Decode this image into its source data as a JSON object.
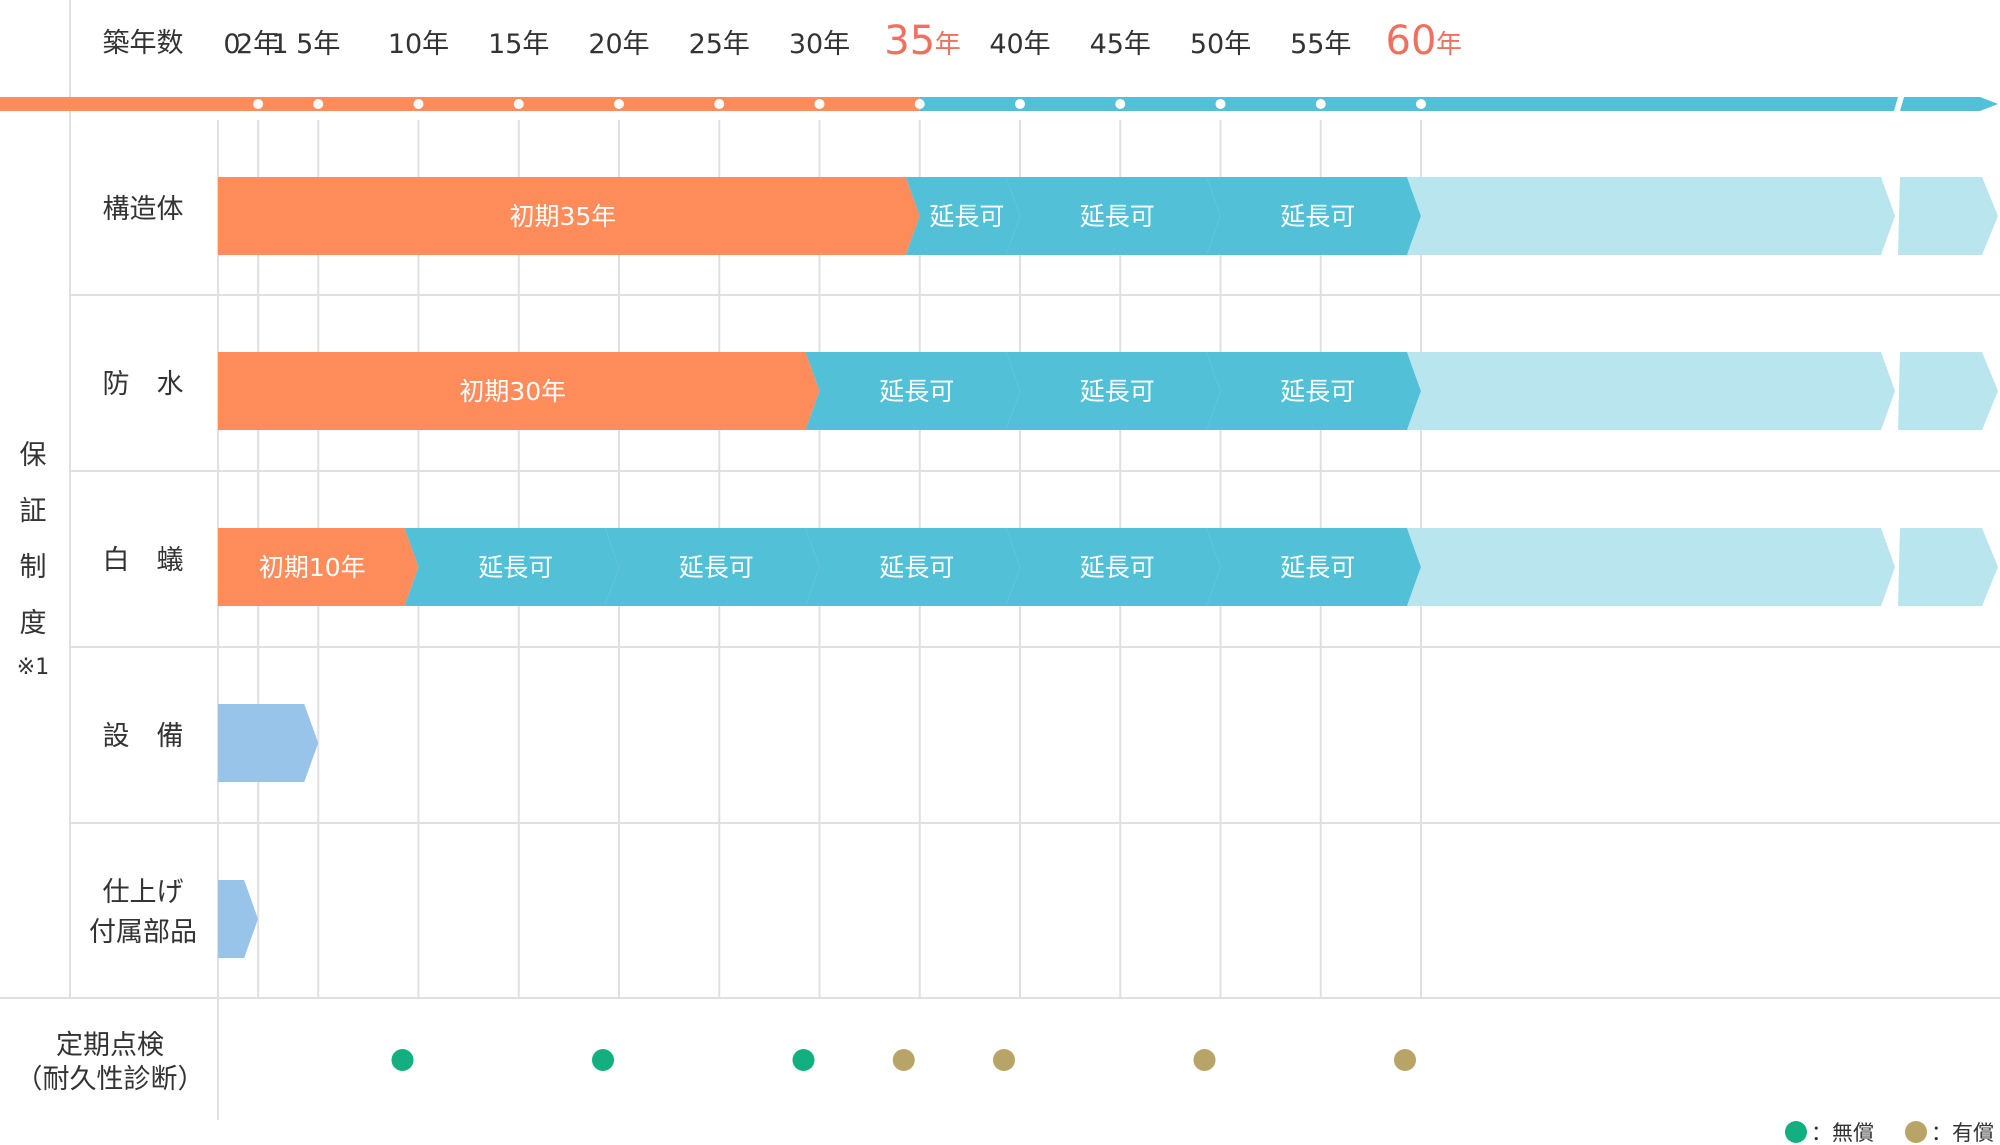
{
  "header": {
    "label": "築年数",
    "year_suffix": "年"
  },
  "years": [
    {
      "text": "0",
      "value": 0
    },
    {
      "text": "1",
      "value": 1
    },
    {
      "text": "2年",
      "value": 2
    },
    {
      "text": "5年",
      "value": 5
    },
    {
      "text": "10年",
      "value": 10
    },
    {
      "text": "15年",
      "value": 15
    },
    {
      "text": "20年",
      "value": 20
    },
    {
      "text": "25年",
      "value": 25
    },
    {
      "text": "30年",
      "value": 30
    },
    {
      "text": "35",
      "value": 35,
      "highlight": true
    },
    {
      "text": "40年",
      "value": 40
    },
    {
      "text": "45年",
      "value": 45
    },
    {
      "text": "50年",
      "value": 50
    },
    {
      "text": "55年",
      "value": 55
    },
    {
      "text": "60",
      "value": 60,
      "highlight": true
    }
  ],
  "side_label": {
    "chars": [
      "保",
      "証",
      "制",
      "度"
    ],
    "note": "※1"
  },
  "rows": [
    {
      "id": "structure",
      "label_lines": [
        "構造体"
      ],
      "segments": [
        {
          "type": "initial",
          "label": "初期35年",
          "start": 0,
          "end": 35
        },
        {
          "type": "extension",
          "label": "延長可",
          "start": 35,
          "end": 40
        },
        {
          "type": "extension",
          "label": "延長可",
          "start": 40,
          "end": 50
        },
        {
          "type": "extension",
          "label": "延長可",
          "start": 50,
          "end": 60
        },
        {
          "type": "future",
          "label": "",
          "start": 60,
          "end": 70
        }
      ]
    },
    {
      "id": "waterproof",
      "label_lines": [
        "防　水"
      ],
      "segments": [
        {
          "type": "initial",
          "label": "初期30年",
          "start": 0,
          "end": 30
        },
        {
          "type": "extension",
          "label": "延長可",
          "start": 30,
          "end": 40
        },
        {
          "type": "extension",
          "label": "延長可",
          "start": 40,
          "end": 50
        },
        {
          "type": "extension",
          "label": "延長可",
          "start": 50,
          "end": 60
        },
        {
          "type": "future",
          "label": "",
          "start": 60,
          "end": 70
        }
      ]
    },
    {
      "id": "termite",
      "label_lines": [
        "白　蟻"
      ],
      "segments": [
        {
          "type": "initial",
          "label": "初期10年",
          "start": 0,
          "end": 10
        },
        {
          "type": "extension",
          "label": "延長可",
          "start": 10,
          "end": 20
        },
        {
          "type": "extension",
          "label": "延長可",
          "start": 20,
          "end": 30
        },
        {
          "type": "extension",
          "label": "延長可",
          "start": 30,
          "end": 40
        },
        {
          "type": "extension",
          "label": "延長可",
          "start": 40,
          "end": 50
        },
        {
          "type": "extension",
          "label": "延長可",
          "start": 50,
          "end": 60
        },
        {
          "type": "future",
          "label": "",
          "start": 60,
          "end": 70
        }
      ]
    },
    {
      "id": "equipment",
      "label_lines": [
        "設　備"
      ],
      "segments": [
        {
          "type": "short",
          "label": "",
          "start": 0,
          "end": 5
        }
      ]
    },
    {
      "id": "finish",
      "label_lines": [
        "仕上げ",
        "付属部品"
      ],
      "segments": [
        {
          "type": "short",
          "label": "",
          "start": 0,
          "end": 2
        }
      ]
    }
  ],
  "inspection": {
    "label_lines": [
      "定期点検",
      "（耐久性診断）"
    ],
    "points": [
      {
        "year": 10,
        "kind": "free"
      },
      {
        "year": 20,
        "kind": "free"
      },
      {
        "year": 30,
        "kind": "free"
      },
      {
        "year": 35,
        "kind": "paid"
      },
      {
        "year": 40,
        "kind": "paid"
      },
      {
        "year": 50,
        "kind": "paid"
      },
      {
        "year": 60,
        "kind": "paid"
      }
    ]
  },
  "legend": [
    {
      "kind": "free",
      "label": "：無償"
    },
    {
      "kind": "paid",
      "label": "：有償"
    }
  ],
  "colors": {
    "initial": "#FF8C5A",
    "extension": "#52C0D7",
    "future": "#B8E5EE",
    "short": "#99C4EA",
    "free": "#13AF80",
    "paid": "#B8A466",
    "highlight": "#F07060",
    "grid": "#E0E0E0",
    "text": "#333333"
  }
}
